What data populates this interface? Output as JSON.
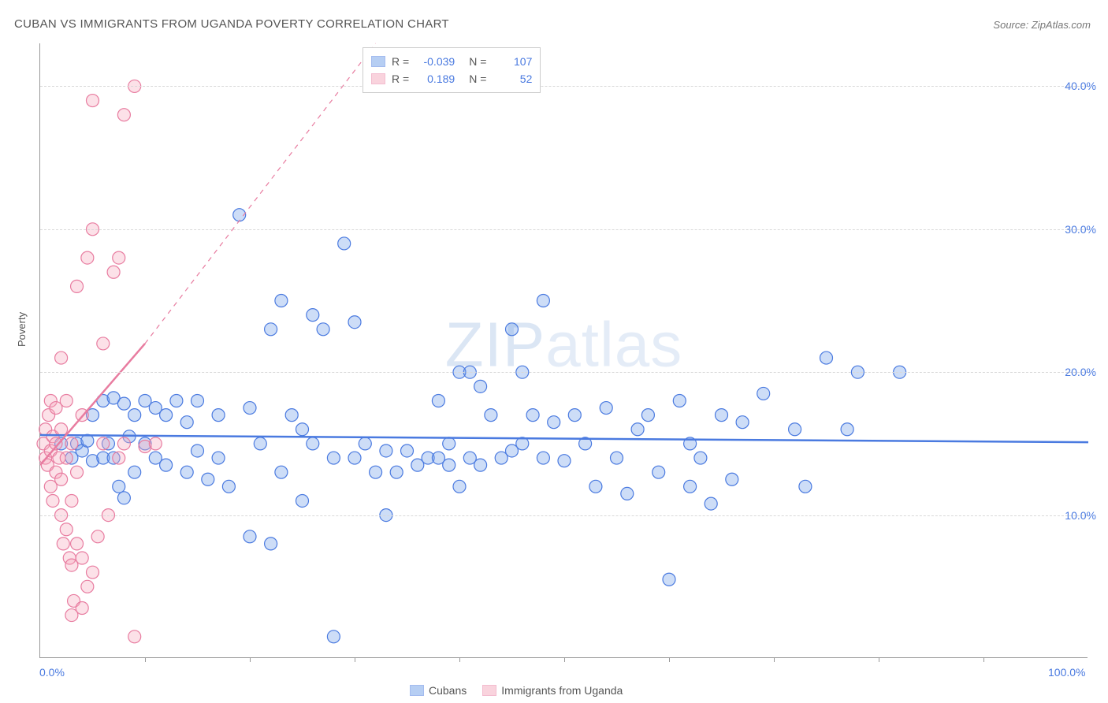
{
  "title": "CUBAN VS IMMIGRANTS FROM UGANDA POVERTY CORRELATION CHART",
  "source_label": "Source:",
  "source_name": "ZipAtlas.com",
  "y_axis_label": "Poverty",
  "watermark": {
    "part1": "ZIP",
    "part2": "atlas"
  },
  "chart": {
    "type": "scatter",
    "background_color": "#ffffff",
    "grid_color": "#d8d8d8",
    "axis_color": "#999999",
    "xlim": [
      0,
      100
    ],
    "ylim": [
      0,
      43
    ],
    "x_tick_labels": [
      {
        "value": 0,
        "label": "0.0%"
      },
      {
        "value": 100,
        "label": "100.0%"
      }
    ],
    "x_ticks_minor": [
      10,
      20,
      30,
      40,
      50,
      60,
      70,
      80,
      90
    ],
    "y_tick_labels": [
      {
        "value": 10,
        "label": "10.0%"
      },
      {
        "value": 20,
        "label": "20.0%"
      },
      {
        "value": 30,
        "label": "30.0%"
      },
      {
        "value": 40,
        "label": "40.0%"
      }
    ],
    "marker_radius": 8,
    "marker_fill_opacity": 0.35,
    "marker_stroke_width": 1.2,
    "series": [
      {
        "name": "Cubans",
        "color": "#6f9ee8",
        "stroke": "#4a7ae0",
        "stats": {
          "R": "-0.039",
          "N": "107"
        },
        "trend_line": {
          "x1": 0,
          "y1": 15.6,
          "x2": 100,
          "y2": 15.1,
          "width": 2.5,
          "dash": "none"
        },
        "points": [
          [
            2,
            15
          ],
          [
            3,
            14
          ],
          [
            3.5,
            15
          ],
          [
            4,
            14.5
          ],
          [
            4.5,
            15.2
          ],
          [
            5,
            13.8
          ],
          [
            5,
            17
          ],
          [
            6,
            14
          ],
          [
            6,
            18
          ],
          [
            6.5,
            15
          ],
          [
            7,
            18.2
          ],
          [
            7,
            14
          ],
          [
            7.5,
            12
          ],
          [
            8,
            17.8
          ],
          [
            8,
            11.2
          ],
          [
            8.5,
            15.5
          ],
          [
            9,
            17
          ],
          [
            9,
            13
          ],
          [
            10,
            15
          ],
          [
            10,
            18
          ],
          [
            11,
            17.5
          ],
          [
            11,
            14
          ],
          [
            12,
            17
          ],
          [
            12,
            13.5
          ],
          [
            13,
            18
          ],
          [
            14,
            16.5
          ],
          [
            14,
            13
          ],
          [
            15,
            18
          ],
          [
            15,
            14.5
          ],
          [
            16,
            12.5
          ],
          [
            17,
            17
          ],
          [
            17,
            14
          ],
          [
            18,
            12
          ],
          [
            19,
            31
          ],
          [
            20,
            17.5
          ],
          [
            20,
            8.5
          ],
          [
            21,
            15
          ],
          [
            22,
            23
          ],
          [
            22,
            8
          ],
          [
            23,
            25
          ],
          [
            23,
            13
          ],
          [
            24,
            17
          ],
          [
            25,
            16
          ],
          [
            25,
            11
          ],
          [
            26,
            24
          ],
          [
            26,
            15
          ],
          [
            27,
            23
          ],
          [
            28,
            14
          ],
          [
            28,
            1.5
          ],
          [
            29,
            29
          ],
          [
            30,
            23.5
          ],
          [
            30,
            14
          ],
          [
            31,
            15
          ],
          [
            32,
            13
          ],
          [
            33,
            14.5
          ],
          [
            33,
            10
          ],
          [
            34,
            13
          ],
          [
            35,
            14.5
          ],
          [
            36,
            13.5
          ],
          [
            37,
            14
          ],
          [
            38,
            14
          ],
          [
            38,
            18
          ],
          [
            39,
            13.5
          ],
          [
            39,
            15
          ],
          [
            40,
            12
          ],
          [
            40,
            20
          ],
          [
            41,
            14
          ],
          [
            41,
            20
          ],
          [
            42,
            19
          ],
          [
            42,
            13.5
          ],
          [
            43,
            17
          ],
          [
            44,
            14
          ],
          [
            45,
            23
          ],
          [
            45,
            14.5
          ],
          [
            46,
            20
          ],
          [
            46,
            15
          ],
          [
            47,
            17
          ],
          [
            48,
            14
          ],
          [
            48,
            25
          ],
          [
            49,
            16.5
          ],
          [
            50,
            13.8
          ],
          [
            51,
            17
          ],
          [
            52,
            15
          ],
          [
            53,
            12
          ],
          [
            54,
            17.5
          ],
          [
            55,
            14
          ],
          [
            56,
            11.5
          ],
          [
            57,
            16
          ],
          [
            58,
            17
          ],
          [
            59,
            13
          ],
          [
            60,
            5.5
          ],
          [
            61,
            18
          ],
          [
            62,
            12
          ],
          [
            62,
            15
          ],
          [
            63,
            14
          ],
          [
            64,
            10.8
          ],
          [
            65,
            17
          ],
          [
            66,
            12.5
          ],
          [
            67,
            16.5
          ],
          [
            69,
            18.5
          ],
          [
            72,
            16
          ],
          [
            73,
            12
          ],
          [
            75,
            21
          ],
          [
            77,
            16
          ],
          [
            78,
            20
          ],
          [
            82,
            20
          ]
        ]
      },
      {
        "name": "Immigrants from Uganda",
        "color": "#f5a8bd",
        "stroke": "#e87ca0",
        "stats": {
          "R": "0.189",
          "N": "52"
        },
        "trend_line_solid": {
          "x1": 0,
          "y1": 13.5,
          "x2": 10,
          "y2": 22,
          "width": 2.5
        },
        "trend_line_dashed": {
          "x1": 10,
          "y1": 22,
          "x2": 32,
          "y2": 43,
          "width": 1.2,
          "dash": "6,6"
        },
        "points": [
          [
            0.3,
            15
          ],
          [
            0.5,
            14
          ],
          [
            0.5,
            16
          ],
          [
            0.7,
            13.5
          ],
          [
            0.8,
            17
          ],
          [
            1,
            12
          ],
          [
            1,
            14.5
          ],
          [
            1,
            18
          ],
          [
            1.2,
            15.5
          ],
          [
            1.2,
            11
          ],
          [
            1.5,
            13
          ],
          [
            1.5,
            15
          ],
          [
            1.5,
            17.5
          ],
          [
            1.8,
            14
          ],
          [
            2,
            10
          ],
          [
            2,
            12.5
          ],
          [
            2,
            16
          ],
          [
            2,
            21
          ],
          [
            2.2,
            8
          ],
          [
            2.5,
            9
          ],
          [
            2.5,
            14
          ],
          [
            2.5,
            18
          ],
          [
            2.8,
            7
          ],
          [
            3,
            3
          ],
          [
            3,
            6.5
          ],
          [
            3,
            11
          ],
          [
            3,
            15
          ],
          [
            3.2,
            4
          ],
          [
            3.5,
            8
          ],
          [
            3.5,
            13
          ],
          [
            3.5,
            26
          ],
          [
            4,
            3.5
          ],
          [
            4,
            7
          ],
          [
            4,
            17
          ],
          [
            4.5,
            5
          ],
          [
            4.5,
            28
          ],
          [
            5,
            6
          ],
          [
            5,
            30
          ],
          [
            5,
            39
          ],
          [
            5.5,
            8.5
          ],
          [
            6,
            15
          ],
          [
            6,
            22
          ],
          [
            6.5,
            10
          ],
          [
            7,
            27
          ],
          [
            7.5,
            14
          ],
          [
            7.5,
            28
          ],
          [
            8,
            15
          ],
          [
            8,
            38
          ],
          [
            9,
            40
          ],
          [
            9,
            1.5
          ],
          [
            10,
            14.8
          ],
          [
            11,
            15
          ]
        ]
      }
    ]
  },
  "legend_top": {
    "r_label": "R =",
    "n_label": "N ="
  },
  "legend_bottom": {
    "items": [
      "Cubans",
      "Immigrants from Uganda"
    ]
  }
}
